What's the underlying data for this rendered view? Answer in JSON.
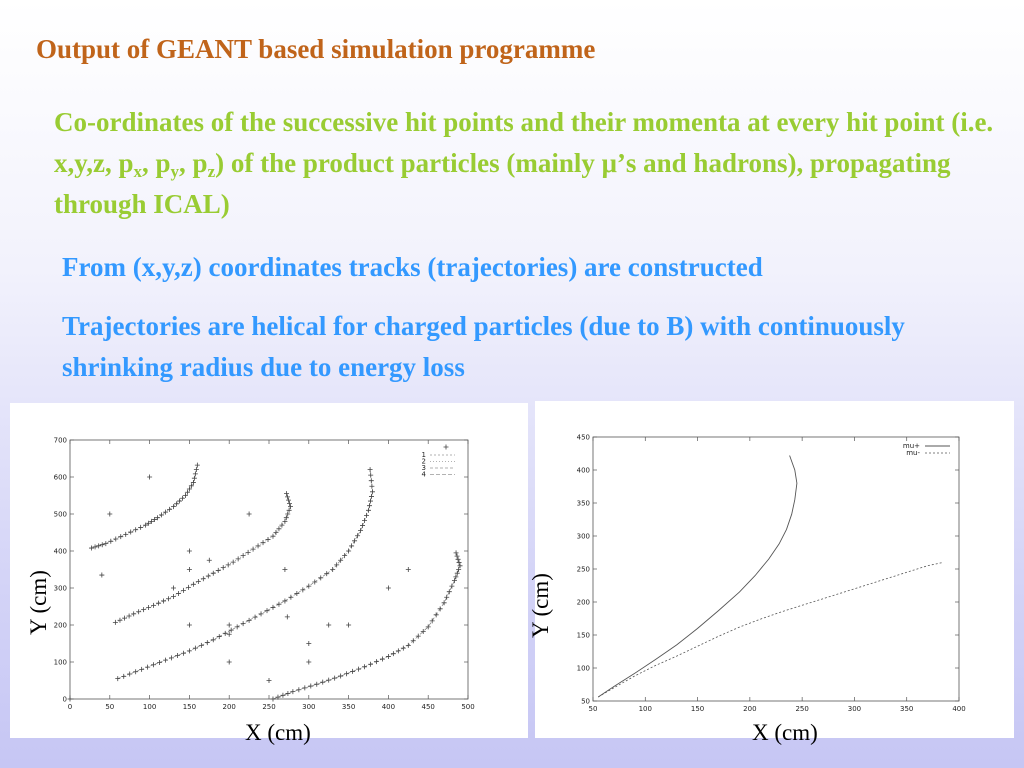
{
  "slide": {
    "title": "Output of GEANT based simulation programme",
    "para1": {
      "t1": "Co-ordinates of the successive hit points and their momenta at every hit point (i.e. x,y,z, p",
      "s1": "x",
      "t2": ", p",
      "s2": "y",
      "t3": ", p",
      "s3": "z",
      "t4": ") of the product particles (mainly ",
      "mu": "μ",
      "t5": "’s and hadrons), propagating through ICAL)"
    },
    "para2": "From (x,y,z) coordinates tracks (trajectories) are constructed",
    "para3": "Trajectories are helical for charged particles (due to B) with continuously shrinking radius due to energy loss",
    "colors": {
      "title": "#c0641a",
      "green_text": "#99cc33",
      "blue_text": "#3399ff"
    }
  },
  "chart_data": [
    {
      "type": "scatter",
      "xlabel": "X (cm)",
      "ylabel": "Y (cm)",
      "xlim": [
        0,
        500
      ],
      "ylim": [
        0,
        700
      ],
      "xticks": [
        0,
        50,
        100,
        150,
        200,
        250,
        300,
        350,
        400,
        450,
        500
      ],
      "yticks": [
        0,
        100,
        200,
        300,
        400,
        500,
        600,
        700
      ],
      "legend_position": "top-right",
      "grid": false,
      "series": [
        {
          "name": "1",
          "points": [
            [
              27,
              408
            ],
            [
              45,
              420
            ],
            [
              70,
              445
            ],
            [
              95,
              470
            ],
            [
              110,
              490
            ],
            [
              130,
              520
            ],
            [
              145,
              550
            ],
            [
              155,
              585
            ],
            [
              160,
              632
            ]
          ]
        },
        {
          "name": "2",
          "points": [
            [
              57,
              207
            ],
            [
              80,
              230
            ],
            [
              105,
              253
            ],
            [
              130,
              277
            ],
            [
              155,
              310
            ],
            [
              180,
              340
            ],
            [
              205,
              370
            ],
            [
              230,
              405
            ],
            [
              255,
              440
            ],
            [
              270,
              480
            ],
            [
              277,
              520
            ],
            [
              272,
              555
            ]
          ]
        },
        {
          "name": "3",
          "points": [
            [
              60,
              55
            ],
            [
              90,
              80
            ],
            [
              120,
              105
            ],
            [
              150,
              130
            ],
            [
              180,
              160
            ],
            [
              210,
              195
            ],
            [
              240,
              230
            ],
            [
              270,
              265
            ],
            [
              300,
              305
            ],
            [
              330,
              350
            ],
            [
              350,
              400
            ],
            [
              365,
              455
            ],
            [
              375,
              510
            ],
            [
              380,
              560
            ],
            [
              377,
              620
            ]
          ]
        },
        {
          "name": "4",
          "points": [
            [
              255,
              0
            ],
            [
              280,
              20
            ],
            [
              310,
              40
            ],
            [
              340,
              62
            ],
            [
              370,
              87
            ],
            [
              400,
              115
            ],
            [
              425,
              145
            ],
            [
              450,
              195
            ],
            [
              470,
              260
            ],
            [
              483,
              320
            ],
            [
              490,
              360
            ],
            [
              485,
              395
            ]
          ]
        }
      ],
      "scatter_points": [
        [
          100,
          600
        ],
        [
          50,
          500
        ],
        [
          40,
          335
        ],
        [
          130,
          300
        ],
        [
          150,
          400
        ],
        [
          150,
          350
        ],
        [
          175,
          375
        ],
        [
          150,
          200
        ],
        [
          200,
          200
        ],
        [
          200,
          175
        ],
        [
          200,
          100
        ],
        [
          225,
          500
        ],
        [
          250,
          50
        ],
        [
          270,
          350
        ],
        [
          273,
          222
        ],
        [
          300,
          150
        ],
        [
          300,
          100
        ],
        [
          325,
          200
        ],
        [
          350,
          200
        ],
        [
          400,
          300
        ],
        [
          425,
          350
        ],
        [
          0,
          0
        ]
      ]
    },
    {
      "type": "line",
      "xlabel": "X (cm)",
      "ylabel": "Y (cm)",
      "xlim": [
        50,
        400
      ],
      "ylim": [
        50,
        450
      ],
      "xticks": [
        50,
        100,
        150,
        200,
        250,
        300,
        350,
        400
      ],
      "yticks": [
        50,
        100,
        150,
        200,
        250,
        300,
        350,
        400,
        450
      ],
      "legend_position": "top-right",
      "grid": false,
      "series": [
        {
          "name": "mu+",
          "x": [
            55,
            70,
            90,
            110,
            130,
            150,
            170,
            190,
            205,
            218,
            228,
            235,
            240,
            243,
            245,
            243,
            238
          ],
          "y": [
            56,
            72,
            92,
            113,
            135,
            160,
            187,
            215,
            240,
            265,
            288,
            310,
            333,
            355,
            380,
            400,
            422
          ]
        },
        {
          "name": "mu-",
          "x": [
            55,
            70,
            90,
            110,
            130,
            150,
            170,
            190,
            210,
            230,
            250,
            270,
            290,
            310,
            330,
            350,
            370,
            385
          ],
          "y": [
            56,
            70,
            88,
            104,
            118,
            133,
            148,
            162,
            174,
            185,
            195,
            205,
            215,
            225,
            235,
            245,
            255,
            260
          ]
        }
      ]
    }
  ]
}
